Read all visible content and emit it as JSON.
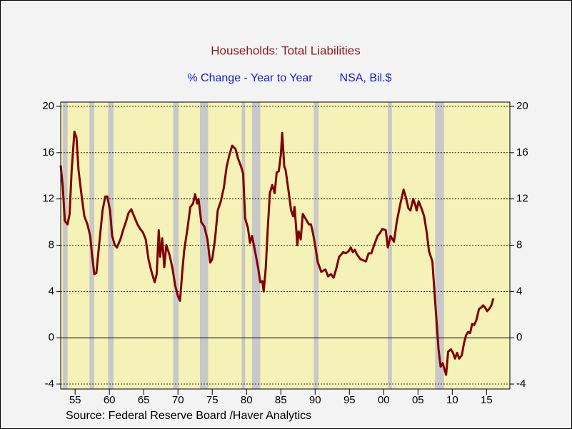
{
  "chart_data": {
    "type": "line",
    "title": "Households: Total Liabilities",
    "subtitle": "% Change - Year to Year",
    "units": "NSA, Bil.$",
    "source": "Source:  Federal Reserve Board /Haver Analytics",
    "xlim": [
      1952.9,
      2018.4
    ],
    "ylim": [
      -4.43,
      20.37
    ],
    "yticks": [
      -4,
      0,
      4,
      8,
      12,
      16,
      20
    ],
    "xticks": [
      {
        "value": 1955,
        "label": "55"
      },
      {
        "value": 1960,
        "label": "60"
      },
      {
        "value": 1965,
        "label": "65"
      },
      {
        "value": 1970,
        "label": "70"
      },
      {
        "value": 1975,
        "label": "75"
      },
      {
        "value": 1980,
        "label": "80"
      },
      {
        "value": 1985,
        "label": "85"
      },
      {
        "value": 1990,
        "label": "90"
      },
      {
        "value": 1995,
        "label": "95"
      },
      {
        "value": 2000,
        "label": "00"
      },
      {
        "value": 2005,
        "label": "05"
      },
      {
        "value": 2010,
        "label": "10"
      },
      {
        "value": 2015,
        "label": "15"
      }
    ],
    "grid": true,
    "zero_line": true,
    "plot_background": "#f5f2b8",
    "recession_color": "#c8c8c8",
    "recessions": [
      [
        1953.2,
        1953.9
      ],
      [
        1957.1,
        1957.8
      ],
      [
        1959.8,
        1960.6
      ],
      [
        1969.3,
        1970.1
      ],
      [
        1973.2,
        1974.4
      ],
      [
        1979.3,
        1979.8
      ],
      [
        1980.8,
        1982.0
      ],
      [
        1989.8,
        1990.5
      ],
      [
        2000.6,
        2001.2
      ],
      [
        2007.5,
        2008.8
      ]
    ],
    "series": [
      {
        "name": "Households: Total Liabilities",
        "color": "#800000",
        "x": [
          1952.9,
          1953.2,
          1953.5,
          1953.9,
          1954.2,
          1954.5,
          1954.9,
          1955.2,
          1955.5,
          1955.9,
          1956.35,
          1956.8,
          1957.2,
          1957.5,
          1957.8,
          1958.1,
          1958.5,
          1959.0,
          1959.4,
          1959.7,
          1960.1,
          1960.4,
          1960.8,
          1961.1,
          1961.6,
          1962.0,
          1962.4,
          1962.8,
          1963.2,
          1963.6,
          1964.1,
          1964.5,
          1964.9,
          1965.3,
          1965.7,
          1966.1,
          1966.6,
          1966.9,
          1967.2,
          1967.4,
          1967.7,
          1968.0,
          1968.3,
          1968.75,
          1969.2,
          1969.6,
          1970.0,
          1970.3,
          1970.6,
          1970.9,
          1971.4,
          1971.8,
          1972.2,
          1972.5,
          1972.8,
          1973.0,
          1973.4,
          1973.85,
          1974.3,
          1974.7,
          1975.0,
          1975.4,
          1975.8,
          1976.25,
          1976.7,
          1977.1,
          1977.5,
          1977.9,
          1978.4,
          1978.75,
          1979.2,
          1979.5,
          1979.8,
          1980.2,
          1980.5,
          1980.8,
          1981.3,
          1981.7,
          1982.0,
          1982.3,
          1982.5,
          1982.8,
          1983.1,
          1983.4,
          1983.75,
          1984.1,
          1984.4,
          1984.7,
          1985.0,
          1985.2,
          1985.5,
          1985.7,
          1986.1,
          1986.5,
          1986.8,
          1987.0,
          1987.2,
          1987.4,
          1987.6,
          1987.9,
          1988.2,
          1988.6,
          1989.1,
          1989.4,
          1989.7,
          1990.0,
          1990.4,
          1990.9,
          1991.5,
          1991.9,
          1992.3,
          1992.7,
          1993.1,
          1993.5,
          1994.1,
          1994.5,
          1994.9,
          1995.2,
          1995.5,
          1995.8,
          1996.1,
          1996.6,
          1997.0,
          1997.4,
          1997.8,
          1998.2,
          1998.6,
          1999.1,
          1999.4,
          1999.8,
          2000.3,
          2000.6,
          2001.0,
          2001.5,
          2001.9,
          2002.4,
          2002.9,
          2003.2,
          2003.6,
          2003.9,
          2004.3,
          2004.6,
          2004.8,
          2005.1,
          2005.5,
          2005.9,
          2006.3,
          2006.6,
          2007.1,
          2007.4,
          2007.7,
          2008.0,
          2008.3,
          2008.6,
          2009.1,
          2009.4,
          2009.8,
          2010.1,
          2010.4,
          2010.7,
          2011.0,
          2011.4,
          2011.7,
          2012.0,
          2012.3,
          2012.6,
          2012.9,
          2013.2,
          2013.5,
          2013.9,
          2014.2,
          2014.5,
          2014.8,
          2015.1,
          2015.4,
          2015.7,
          2016.0
        ],
        "values": [
          14.9,
          13.1,
          10.1,
          9.8,
          10.7,
          14.5,
          17.8,
          17.3,
          14.5,
          12.5,
          10.5,
          9.8,
          8.8,
          7.0,
          5.5,
          5.6,
          8.0,
          11.0,
          12.2,
          12.2,
          11.0,
          8.8,
          8.0,
          7.8,
          8.5,
          9.3,
          10.0,
          10.8,
          11.1,
          10.5,
          9.8,
          9.4,
          9.1,
          8.5,
          6.8,
          5.8,
          4.8,
          5.5,
          9.3,
          7.0,
          8.6,
          6.1,
          8.0,
          7.2,
          6.0,
          4.5,
          3.6,
          3.2,
          5.5,
          7.5,
          9.5,
          11.3,
          11.6,
          12.4,
          11.6,
          12.0,
          10.0,
          9.6,
          8.5,
          6.5,
          6.8,
          8.5,
          11.0,
          11.8,
          13.0,
          14.8,
          15.8,
          16.6,
          16.3,
          15.5,
          14.8,
          14.2,
          10.3,
          9.5,
          8.2,
          8.8,
          7.3,
          6.0,
          4.8,
          4.9,
          4.0,
          6.0,
          9.5,
          12.5,
          13.2,
          12.5,
          14.3,
          14.4,
          15.8,
          17.7,
          14.8,
          14.5,
          12.8,
          11.0,
          10.5,
          11.3,
          9.8,
          8.0,
          9.2,
          8.5,
          10.7,
          10.3,
          9.8,
          9.8,
          9.0,
          8.0,
          6.5,
          5.7,
          5.9,
          5.3,
          5.5,
          5.2,
          6.0,
          7.0,
          7.4,
          7.3,
          7.5,
          7.8,
          7.4,
          7.6,
          7.2,
          6.8,
          6.7,
          6.6,
          7.3,
          7.3,
          8.0,
          8.8,
          9.0,
          9.4,
          9.3,
          7.8,
          8.8,
          8.3,
          10.0,
          11.5,
          12.8,
          12.2,
          11.2,
          11.0,
          12.0,
          11.5,
          11.0,
          11.8,
          11.2,
          10.5,
          9.0,
          7.5,
          6.6,
          4.0,
          1.5,
          -1.0,
          -2.5,
          -2.2,
          -3.2,
          -1.2,
          -1.0,
          -1.3,
          -1.8,
          -1.3,
          -1.8,
          -1.5,
          -0.5,
          0.2,
          0.5,
          0.4,
          1.2,
          1.1,
          1.5,
          2.5,
          2.6,
          2.8,
          2.6,
          2.3,
          2.5,
          2.8,
          3.4
        ]
      }
    ]
  }
}
